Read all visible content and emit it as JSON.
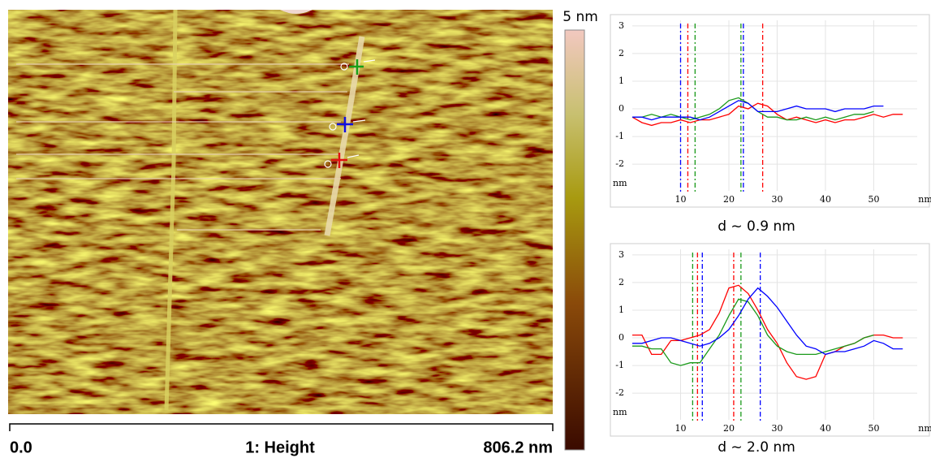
{
  "image": {
    "colorbar_label": "5 nm",
    "scale_start": "0.0",
    "channel": "1: Height",
    "scale_end": "806.2 nm"
  },
  "chart_data": [
    {
      "type": "line",
      "caption": "d ~ 0.9 nm",
      "xlabel": "nm",
      "ylabel": "nm",
      "x": [
        0,
        2,
        4,
        6,
        8,
        10,
        12,
        14,
        16,
        18,
        20,
        22,
        24,
        26,
        28,
        30,
        32,
        34,
        36,
        38,
        40,
        42,
        44,
        46,
        48,
        50,
        52,
        54,
        56
      ],
      "xlim": [
        0,
        59
      ],
      "ylim": [
        -3.2,
        3.2
      ],
      "xticks": [
        10,
        20,
        30,
        40,
        50
      ],
      "yticks": [
        -2,
        -1,
        0,
        1,
        2,
        3
      ],
      "grid": true,
      "series": [
        {
          "name": "red",
          "color": "#ff0000",
          "cursors": [
            11.5,
            27
          ],
          "values": [
            -0.3,
            -0.5,
            -0.6,
            -0.5,
            -0.5,
            -0.4,
            -0.5,
            -0.4,
            -0.4,
            -0.3,
            -0.2,
            0.1,
            0.0,
            0.2,
            0.1,
            -0.2,
            -0.4,
            -0.3,
            -0.4,
            -0.5,
            -0.4,
            -0.5,
            -0.4,
            -0.4,
            -0.3,
            -0.2,
            -0.3,
            -0.2,
            -0.2
          ]
        },
        {
          "name": "green",
          "color": "#1a9a1a",
          "cursors": [
            13,
            22.5
          ],
          "values": [
            -0.3,
            -0.3,
            -0.2,
            -0.3,
            -0.2,
            -0.3,
            -0.4,
            -0.3,
            -0.2,
            0.0,
            0.3,
            0.4,
            0.2,
            -0.1,
            -0.3,
            -0.3,
            -0.4,
            -0.4,
            -0.3,
            -0.4,
            -0.3,
            -0.4,
            -0.3,
            -0.2,
            -0.2,
            -0.1,
            null,
            null,
            null
          ]
        },
        {
          "name": "blue",
          "color": "#0000ff",
          "cursors": [
            10,
            23
          ],
          "values": [
            -0.3,
            -0.3,
            -0.4,
            -0.3,
            -0.3,
            -0.3,
            -0.3,
            -0.4,
            -0.3,
            -0.1,
            0.1,
            0.3,
            0.2,
            -0.1,
            -0.1,
            -0.1,
            0.0,
            0.1,
            0.0,
            0.0,
            0.0,
            -0.1,
            0.0,
            0.0,
            0.0,
            0.1,
            0.1,
            null,
            null
          ]
        }
      ]
    },
    {
      "type": "line",
      "caption": "d ~ 2.0 nm",
      "xlabel": "nm",
      "ylabel": "nm",
      "x": [
        0,
        2,
        4,
        6,
        8,
        10,
        12,
        14,
        16,
        18,
        20,
        22,
        24,
        26,
        28,
        30,
        32,
        34,
        36,
        38,
        40,
        42,
        44,
        46,
        48,
        50,
        52,
        54,
        56
      ],
      "xlim": [
        0,
        59
      ],
      "ylim": [
        -3.2,
        3.2
      ],
      "xticks": [
        10,
        20,
        30,
        40,
        50
      ],
      "yticks": [
        -2,
        -1,
        0,
        1,
        2,
        3
      ],
      "grid": true,
      "series": [
        {
          "name": "red",
          "color": "#ff0000",
          "cursors": [
            13.5,
            21
          ],
          "values": [
            0.1,
            0.1,
            -0.6,
            -0.6,
            -0.1,
            -0.1,
            0.0,
            0.1,
            0.3,
            0.9,
            1.8,
            1.9,
            1.6,
            1.0,
            0.3,
            -0.2,
            -0.9,
            -1.4,
            -1.5,
            -1.4,
            -0.6,
            -0.5,
            -0.3,
            -0.2,
            0.0,
            0.1,
            0.1,
            0.0,
            0.0
          ]
        },
        {
          "name": "green",
          "color": "#1a9a1a",
          "cursors": [
            12.5,
            22.5
          ],
          "values": [
            -0.3,
            -0.3,
            -0.4,
            -0.4,
            -0.9,
            -1.0,
            -0.9,
            -0.9,
            -0.4,
            0.1,
            0.8,
            1.4,
            1.3,
            0.8,
            0.1,
            -0.3,
            -0.5,
            -0.6,
            -0.6,
            -0.6,
            -0.5,
            -0.4,
            -0.3,
            -0.2,
            0.0,
            0.1,
            null,
            null,
            null
          ]
        },
        {
          "name": "blue",
          "color": "#0000ff",
          "cursors": [
            14.5,
            26.5
          ],
          "values": [
            -0.2,
            -0.2,
            -0.1,
            0.0,
            0.0,
            -0.1,
            -0.2,
            -0.3,
            -0.2,
            0.0,
            0.3,
            0.8,
            1.4,
            1.8,
            1.5,
            1.1,
            0.6,
            0.1,
            -0.3,
            -0.4,
            -0.6,
            -0.5,
            -0.5,
            -0.4,
            -0.3,
            -0.1,
            -0.2,
            -0.4,
            -0.4
          ]
        }
      ]
    }
  ]
}
